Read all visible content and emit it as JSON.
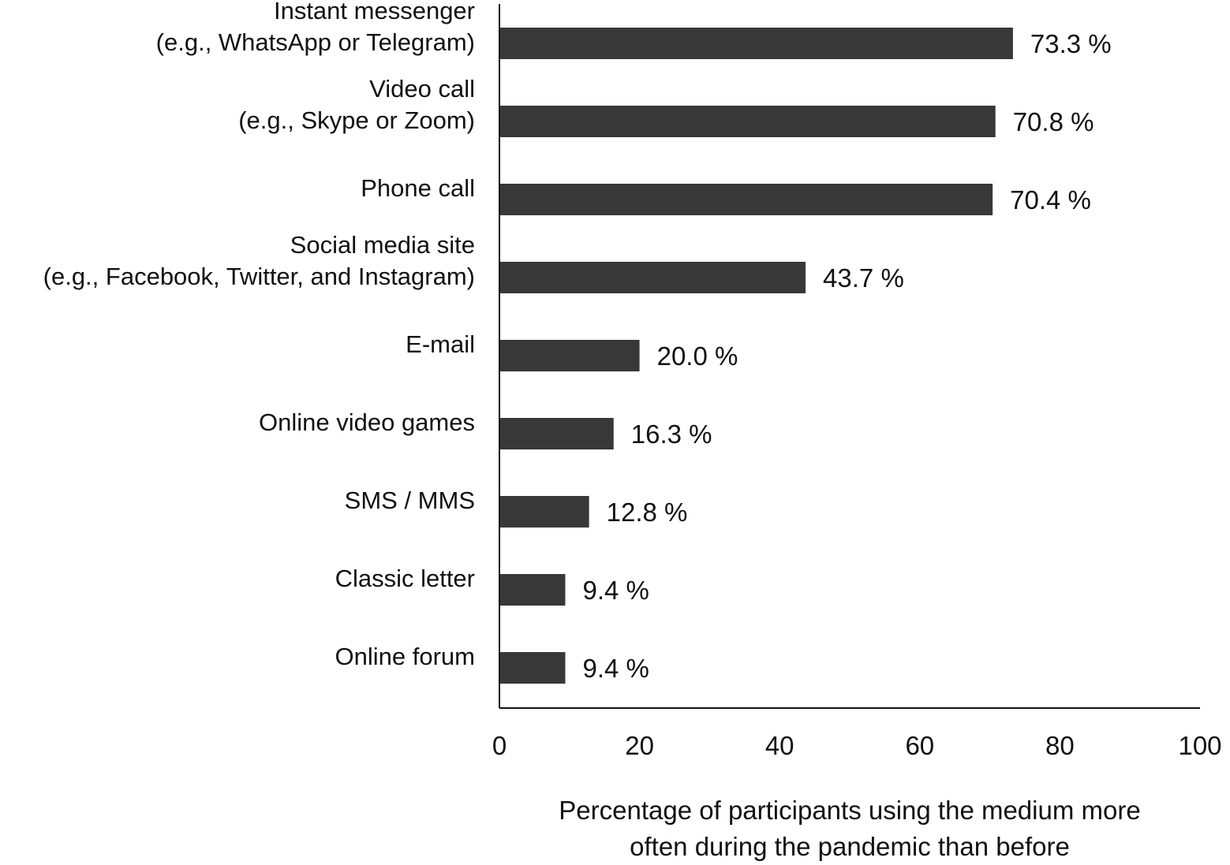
{
  "chart_data": {
    "type": "bar",
    "orientation": "horizontal",
    "categories": [
      [
        "Instant messenger",
        "(e.g., WhatsApp or Telegram)"
      ],
      [
        "Video call",
        "(e.g., Skype or Zoom)"
      ],
      [
        "Phone call"
      ],
      [
        "Social media site",
        "(e.g., Facebook, Twitter, and Instagram)"
      ],
      [
        "E-mail"
      ],
      [
        "Online video games"
      ],
      [
        "SMS / MMS"
      ],
      [
        "Classic letter"
      ],
      [
        "Online forum"
      ]
    ],
    "values": [
      73.3,
      70.8,
      70.4,
      43.7,
      20.0,
      16.3,
      12.8,
      9.4,
      9.4
    ],
    "value_labels": [
      "73.3 %",
      "70.8 %",
      "70.4 %",
      "43.7 %",
      "20.0 %",
      "16.3 %",
      "12.8 %",
      "9.4 %",
      "9.4 %"
    ],
    "xlim": [
      0,
      100
    ],
    "xticks": [
      "0",
      "20",
      "40",
      "60",
      "80",
      "100"
    ],
    "xlabel": [
      "Percentage of participants using the medium more",
      "often during the pandemic than before"
    ],
    "ylabel": "",
    "title": "",
    "grid": false,
    "legend": "none",
    "bar_color": "#383838"
  }
}
